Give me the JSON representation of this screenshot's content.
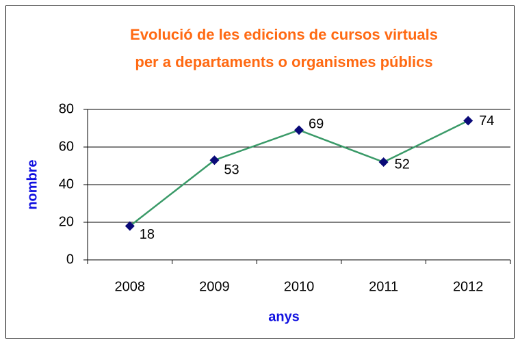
{
  "chart_data": {
    "type": "line",
    "title": [
      "Evolució de les edicions de cursos virtuals",
      "per a departaments o organismes públics"
    ],
    "x_label": "anys",
    "y_label": "nombre",
    "categories": [
      "2008",
      "2009",
      "2010",
      "2011",
      "2012"
    ],
    "series": [
      {
        "name": "nombre",
        "color": "#3a9a68",
        "marker_color": "#0a0a78",
        "values": [
          18,
          53,
          69,
          52,
          74
        ]
      }
    ],
    "ylim": [
      0,
      80
    ],
    "yticks": [
      0,
      20,
      40,
      60,
      80
    ],
    "grid": true,
    "legend": false
  }
}
